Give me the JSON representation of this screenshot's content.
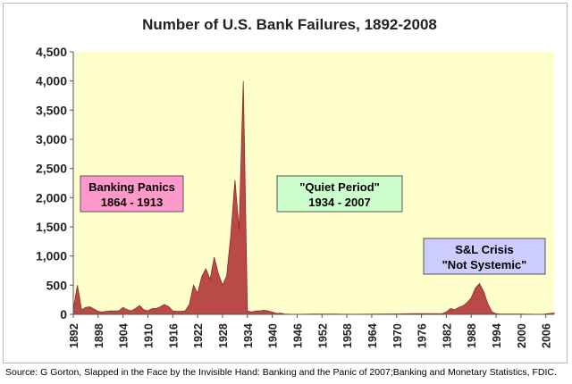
{
  "chart_data": {
    "type": "area",
    "title": "Number of U.S. Bank Failures, 1892-2008",
    "xlabel": "",
    "ylabel": "",
    "ylim": [
      0,
      4500
    ],
    "yticks": [
      0,
      500,
      1000,
      1500,
      2000,
      2500,
      3000,
      3500,
      4000,
      4500
    ],
    "ytick_labels": [
      "0",
      "500",
      "1,000",
      "1,500",
      "2,000",
      "2,500",
      "3,000",
      "3,500",
      "4,000",
      "4,500"
    ],
    "xlim": [
      1892,
      2008
    ],
    "xticks": [
      1892,
      1898,
      1904,
      1910,
      1916,
      1922,
      1928,
      1934,
      1940,
      1946,
      1952,
      1958,
      1964,
      1970,
      1976,
      1982,
      1988,
      1994,
      2000,
      2006
    ],
    "grid": false,
    "colors": {
      "plot_bg": "#ffffcc",
      "fill": "#b94a48",
      "stroke": "#8c2b2b"
    },
    "series": [
      {
        "x": [
          1892,
          1893,
          1894,
          1895,
          1896,
          1897,
          1898,
          1899,
          1900,
          1901,
          1902,
          1903,
          1904,
          1905,
          1906,
          1907,
          1908,
          1909,
          1910,
          1911,
          1912,
          1913,
          1914,
          1915,
          1916,
          1917,
          1918,
          1919,
          1920,
          1921,
          1922,
          1923,
          1924,
          1925,
          1926,
          1927,
          1928,
          1929,
          1930,
          1931,
          1932,
          1933,
          1934,
          1935,
          1936,
          1937,
          1938,
          1939,
          1940,
          1941,
          1942,
          1943,
          1944,
          1945,
          1950,
          1955,
          1960,
          1965,
          1970,
          1975,
          1980,
          1981,
          1982,
          1983,
          1984,
          1985,
          1986,
          1987,
          1988,
          1989,
          1990,
          1991,
          1992,
          1993,
          1994,
          1995,
          2000,
          2005,
          2008
        ],
        "values": [
          80,
          500,
          80,
          120,
          130,
          90,
          50,
          40,
          50,
          60,
          60,
          60,
          120,
          80,
          60,
          100,
          150,
          80,
          60,
          100,
          100,
          130,
          170,
          130,
          60,
          50,
          50,
          60,
          170,
          500,
          360,
          650,
          780,
          600,
          980,
          700,
          500,
          660,
          1350,
          2300,
          1450,
          4000,
          60,
          40,
          60,
          60,
          70,
          60,
          40,
          15,
          20,
          5,
          3,
          0,
          5,
          5,
          2,
          5,
          8,
          13,
          10,
          10,
          42,
          100,
          80,
          120,
          145,
          200,
          280,
          450,
          530,
          390,
          180,
          45,
          10,
          5,
          5,
          0,
          25
        ]
      }
    ],
    "annotations": [
      {
        "line1": "Banking Panics",
        "line2": "1864 - 1913",
        "bg": "#ff99cc"
      },
      {
        "line1": "\"Quiet Period\"",
        "line2": "1934 - 2007",
        "bg": "#ccffcc"
      },
      {
        "line1": "S&L Crisis",
        "line2": "\"Not Systemic\"",
        "bg": "#ccccff"
      }
    ]
  },
  "footer": {
    "source": "Source: G Gorton, Slapped in the Face by the Invisible Hand: Banking and the Panic of 2007;Banking and Monetary Statistics, FDIC."
  }
}
